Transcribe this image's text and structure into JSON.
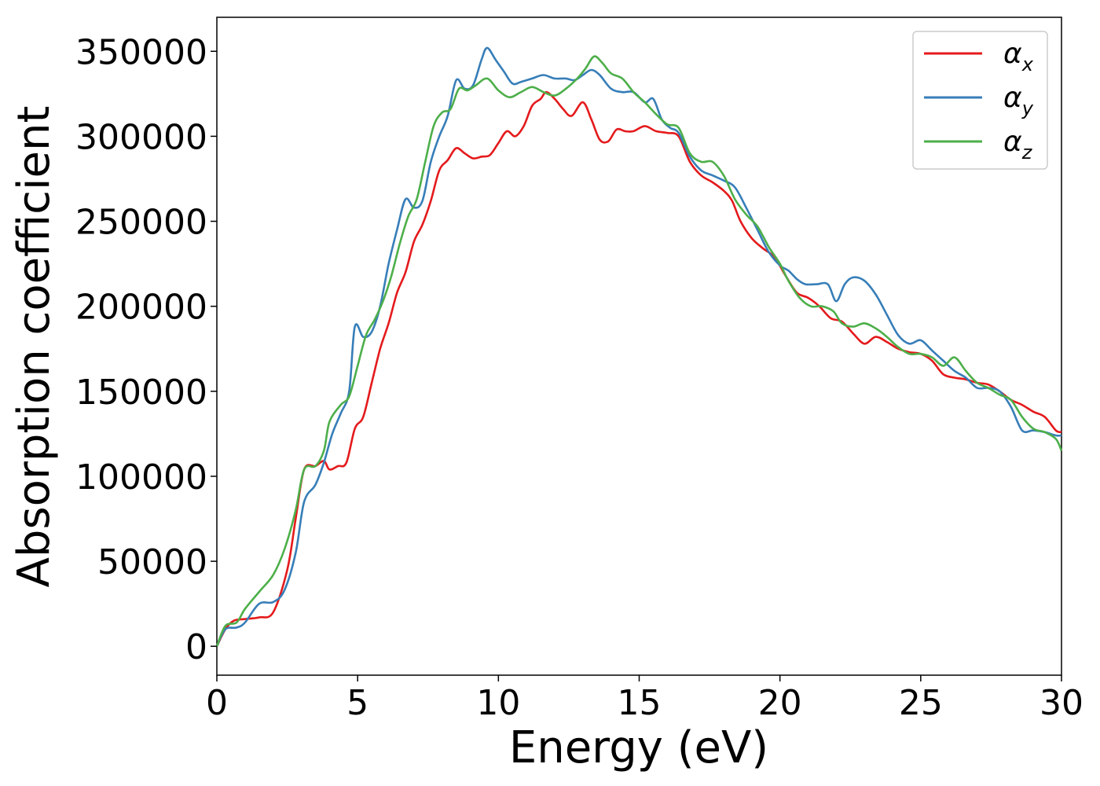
{
  "chart_data": {
    "type": "line",
    "title": "",
    "xlabel": "Energy (eV)",
    "ylabel": "Absorption coefficient",
    "xlim": [
      0,
      30
    ],
    "ylim": [
      -17000,
      370000
    ],
    "xticks": [
      "0",
      "5",
      "10",
      "15",
      "20",
      "25",
      "30"
    ],
    "xtick_values": [
      0,
      5,
      10,
      15,
      20,
      25,
      30
    ],
    "yticks": [
      "0",
      "50000",
      "100000",
      "150000",
      "200000",
      "250000",
      "300000",
      "350000"
    ],
    "ytick_values": [
      0,
      50000,
      100000,
      150000,
      200000,
      250000,
      300000,
      350000
    ],
    "grid": false,
    "legend_position": "top-right",
    "series": [
      {
        "name": "α",
        "subscript": "x",
        "color": "#e41a1c",
        "points": [
          [
            0,
            0
          ],
          [
            0.3,
            10000
          ],
          [
            0.6,
            15000
          ],
          [
            1,
            16000
          ],
          [
            1.5,
            17000
          ],
          [
            2,
            20000
          ],
          [
            2.5,
            45000
          ],
          [
            2.8,
            75000
          ],
          [
            3.1,
            104000
          ],
          [
            3.5,
            106000
          ],
          [
            3.8,
            109000
          ],
          [
            4,
            104000
          ],
          [
            4.3,
            106000
          ],
          [
            4.6,
            108000
          ],
          [
            4.9,
            128000
          ],
          [
            5.2,
            135000
          ],
          [
            5.5,
            155000
          ],
          [
            5.8,
            175000
          ],
          [
            6.1,
            190000
          ],
          [
            6.4,
            208000
          ],
          [
            6.7,
            220000
          ],
          [
            7,
            238000
          ],
          [
            7.3,
            248000
          ],
          [
            7.6,
            262000
          ],
          [
            7.9,
            280000
          ],
          [
            8.2,
            286000
          ],
          [
            8.5,
            293000
          ],
          [
            8.8,
            290000
          ],
          [
            9.1,
            287000
          ],
          [
            9.4,
            288000
          ],
          [
            9.7,
            289000
          ],
          [
            10,
            296000
          ],
          [
            10.3,
            303000
          ],
          [
            10.6,
            300000
          ],
          [
            10.9,
            306000
          ],
          [
            11.2,
            318000
          ],
          [
            11.5,
            322000
          ],
          [
            11.7,
            326000
          ],
          [
            12,
            322000
          ],
          [
            12.3,
            316000
          ],
          [
            12.6,
            312000
          ],
          [
            13,
            320000
          ],
          [
            13.3,
            310000
          ],
          [
            13.6,
            298000
          ],
          [
            13.9,
            297000
          ],
          [
            14.2,
            304000
          ],
          [
            14.5,
            303000
          ],
          [
            14.8,
            303000
          ],
          [
            15.2,
            306000
          ],
          [
            15.6,
            303000
          ],
          [
            16,
            302000
          ],
          [
            16.4,
            300000
          ],
          [
            16.8,
            285000
          ],
          [
            17.2,
            277000
          ],
          [
            17.6,
            273000
          ],
          [
            18,
            268000
          ],
          [
            18.3,
            262000
          ],
          [
            18.6,
            250000
          ],
          [
            19,
            240000
          ],
          [
            19.4,
            234000
          ],
          [
            19.8,
            229000
          ],
          [
            20.2,
            218000
          ],
          [
            20.6,
            208000
          ],
          [
            21,
            205000
          ],
          [
            21.4,
            200000
          ],
          [
            21.8,
            193000
          ],
          [
            22.2,
            191000
          ],
          [
            22.6,
            184000
          ],
          [
            23,
            178000
          ],
          [
            23.4,
            182000
          ],
          [
            23.8,
            179000
          ],
          [
            24.2,
            175000
          ],
          [
            24.6,
            173000
          ],
          [
            25,
            172000
          ],
          [
            25.4,
            168000
          ],
          [
            25.8,
            160000
          ],
          [
            26.2,
            158000
          ],
          [
            26.6,
            157000
          ],
          [
            27,
            155000
          ],
          [
            27.4,
            154000
          ],
          [
            27.8,
            150000
          ],
          [
            28.2,
            145000
          ],
          [
            28.6,
            142000
          ],
          [
            29,
            138000
          ],
          [
            29.4,
            135000
          ],
          [
            29.8,
            127000
          ],
          [
            30,
            126000
          ]
        ]
      },
      {
        "name": "α",
        "subscript": "y",
        "color": "#377eb8",
        "points": [
          [
            0,
            0
          ],
          [
            0.3,
            10000
          ],
          [
            0.7,
            11000
          ],
          [
            1,
            14000
          ],
          [
            1.5,
            25000
          ],
          [
            2,
            26000
          ],
          [
            2.4,
            33000
          ],
          [
            2.8,
            55000
          ],
          [
            3.1,
            85000
          ],
          [
            3.5,
            95000
          ],
          [
            3.8,
            108000
          ],
          [
            4.1,
            125000
          ],
          [
            4.4,
            137000
          ],
          [
            4.7,
            150000
          ],
          [
            4.9,
            188000
          ],
          [
            5.2,
            182000
          ],
          [
            5.5,
            185000
          ],
          [
            5.8,
            200000
          ],
          [
            6.1,
            225000
          ],
          [
            6.4,
            245000
          ],
          [
            6.7,
            263000
          ],
          [
            7,
            258000
          ],
          [
            7.3,
            262000
          ],
          [
            7.6,
            285000
          ],
          [
            7.9,
            300000
          ],
          [
            8.2,
            312000
          ],
          [
            8.5,
            333000
          ],
          [
            8.8,
            328000
          ],
          [
            9.1,
            330000
          ],
          [
            9.4,
            345000
          ],
          [
            9.6,
            352000
          ],
          [
            9.9,
            345000
          ],
          [
            10.2,
            338000
          ],
          [
            10.5,
            331000
          ],
          [
            10.8,
            332000
          ],
          [
            11.2,
            334000
          ],
          [
            11.6,
            336000
          ],
          [
            12,
            334000
          ],
          [
            12.4,
            334000
          ],
          [
            12.7,
            333000
          ],
          [
            13,
            336000
          ],
          [
            13.3,
            339000
          ],
          [
            13.6,
            336000
          ],
          [
            14,
            328000
          ],
          [
            14.4,
            326000
          ],
          [
            14.8,
            326000
          ],
          [
            15.2,
            320000
          ],
          [
            15.5,
            322000
          ],
          [
            15.8,
            310000
          ],
          [
            16.1,
            305000
          ],
          [
            16.4,
            302000
          ],
          [
            16.8,
            288000
          ],
          [
            17.2,
            280000
          ],
          [
            17.6,
            277000
          ],
          [
            18,
            274000
          ],
          [
            18.4,
            270000
          ],
          [
            18.8,
            258000
          ],
          [
            19.2,
            245000
          ],
          [
            19.6,
            232000
          ],
          [
            20,
            224000
          ],
          [
            20.3,
            221000
          ],
          [
            20.6,
            216000
          ],
          [
            20.9,
            213000
          ],
          [
            21.3,
            213000
          ],
          [
            21.7,
            213000
          ],
          [
            22,
            203000
          ],
          [
            22.3,
            213000
          ],
          [
            22.6,
            217000
          ],
          [
            23,
            215000
          ],
          [
            23.4,
            207000
          ],
          [
            23.8,
            195000
          ],
          [
            24.2,
            183000
          ],
          [
            24.6,
            178000
          ],
          [
            25,
            180000
          ],
          [
            25.4,
            174000
          ],
          [
            25.8,
            168000
          ],
          [
            26.2,
            162000
          ],
          [
            26.6,
            158000
          ],
          [
            27,
            152000
          ],
          [
            27.4,
            152000
          ],
          [
            27.8,
            150000
          ],
          [
            28.2,
            141000
          ],
          [
            28.6,
            127000
          ],
          [
            29,
            127000
          ],
          [
            29.4,
            126000
          ],
          [
            29.8,
            124000
          ],
          [
            30,
            124000
          ]
        ]
      },
      {
        "name": "α",
        "subscript": "z",
        "color": "#4daf4a",
        "points": [
          [
            0,
            0
          ],
          [
            0.3,
            12000
          ],
          [
            0.7,
            14000
          ],
          [
            1,
            22000
          ],
          [
            1.5,
            32000
          ],
          [
            2,
            42000
          ],
          [
            2.4,
            57000
          ],
          [
            2.8,
            80000
          ],
          [
            3.1,
            104000
          ],
          [
            3.5,
            106000
          ],
          [
            3.8,
            115000
          ],
          [
            4,
            132000
          ],
          [
            4.4,
            142000
          ],
          [
            4.7,
            147000
          ],
          [
            5,
            165000
          ],
          [
            5.3,
            183000
          ],
          [
            5.6,
            192000
          ],
          [
            5.9,
            203000
          ],
          [
            6.2,
            218000
          ],
          [
            6.5,
            237000
          ],
          [
            6.8,
            253000
          ],
          [
            7.1,
            263000
          ],
          [
            7.4,
            285000
          ],
          [
            7.7,
            306000
          ],
          [
            8,
            314000
          ],
          [
            8.3,
            316000
          ],
          [
            8.6,
            328000
          ],
          [
            8.9,
            327000
          ],
          [
            9.2,
            330000
          ],
          [
            9.6,
            334000
          ],
          [
            10,
            327000
          ],
          [
            10.4,
            323000
          ],
          [
            10.8,
            326000
          ],
          [
            11.2,
            329000
          ],
          [
            11.6,
            326000
          ],
          [
            12,
            324000
          ],
          [
            12.4,
            328000
          ],
          [
            12.8,
            334000
          ],
          [
            13.1,
            340000
          ],
          [
            13.4,
            347000
          ],
          [
            13.7,
            343000
          ],
          [
            14,
            337000
          ],
          [
            14.4,
            334000
          ],
          [
            14.8,
            326000
          ],
          [
            15.2,
            320000
          ],
          [
            15.6,
            313000
          ],
          [
            16,
            307000
          ],
          [
            16.4,
            305000
          ],
          [
            16.8,
            290000
          ],
          [
            17.2,
            285000
          ],
          [
            17.6,
            285000
          ],
          [
            18,
            277000
          ],
          [
            18.4,
            263000
          ],
          [
            18.8,
            254000
          ],
          [
            19.2,
            247000
          ],
          [
            19.6,
            235000
          ],
          [
            20,
            225000
          ],
          [
            20.3,
            215000
          ],
          [
            20.7,
            205000
          ],
          [
            21.1,
            200000
          ],
          [
            21.5,
            200000
          ],
          [
            21.9,
            197000
          ],
          [
            22.2,
            190000
          ],
          [
            22.6,
            188000
          ],
          [
            23,
            190000
          ],
          [
            23.4,
            187000
          ],
          [
            23.8,
            182000
          ],
          [
            24.2,
            176000
          ],
          [
            24.6,
            172000
          ],
          [
            25,
            172000
          ],
          [
            25.4,
            170000
          ],
          [
            25.8,
            165000
          ],
          [
            26.2,
            170000
          ],
          [
            26.6,
            162000
          ],
          [
            27,
            155000
          ],
          [
            27.4,
            152000
          ],
          [
            27.8,
            148000
          ],
          [
            28.2,
            145000
          ],
          [
            28.6,
            135000
          ],
          [
            29,
            128000
          ],
          [
            29.4,
            126000
          ],
          [
            29.8,
            122000
          ],
          [
            30,
            115000
          ]
        ]
      }
    ]
  }
}
